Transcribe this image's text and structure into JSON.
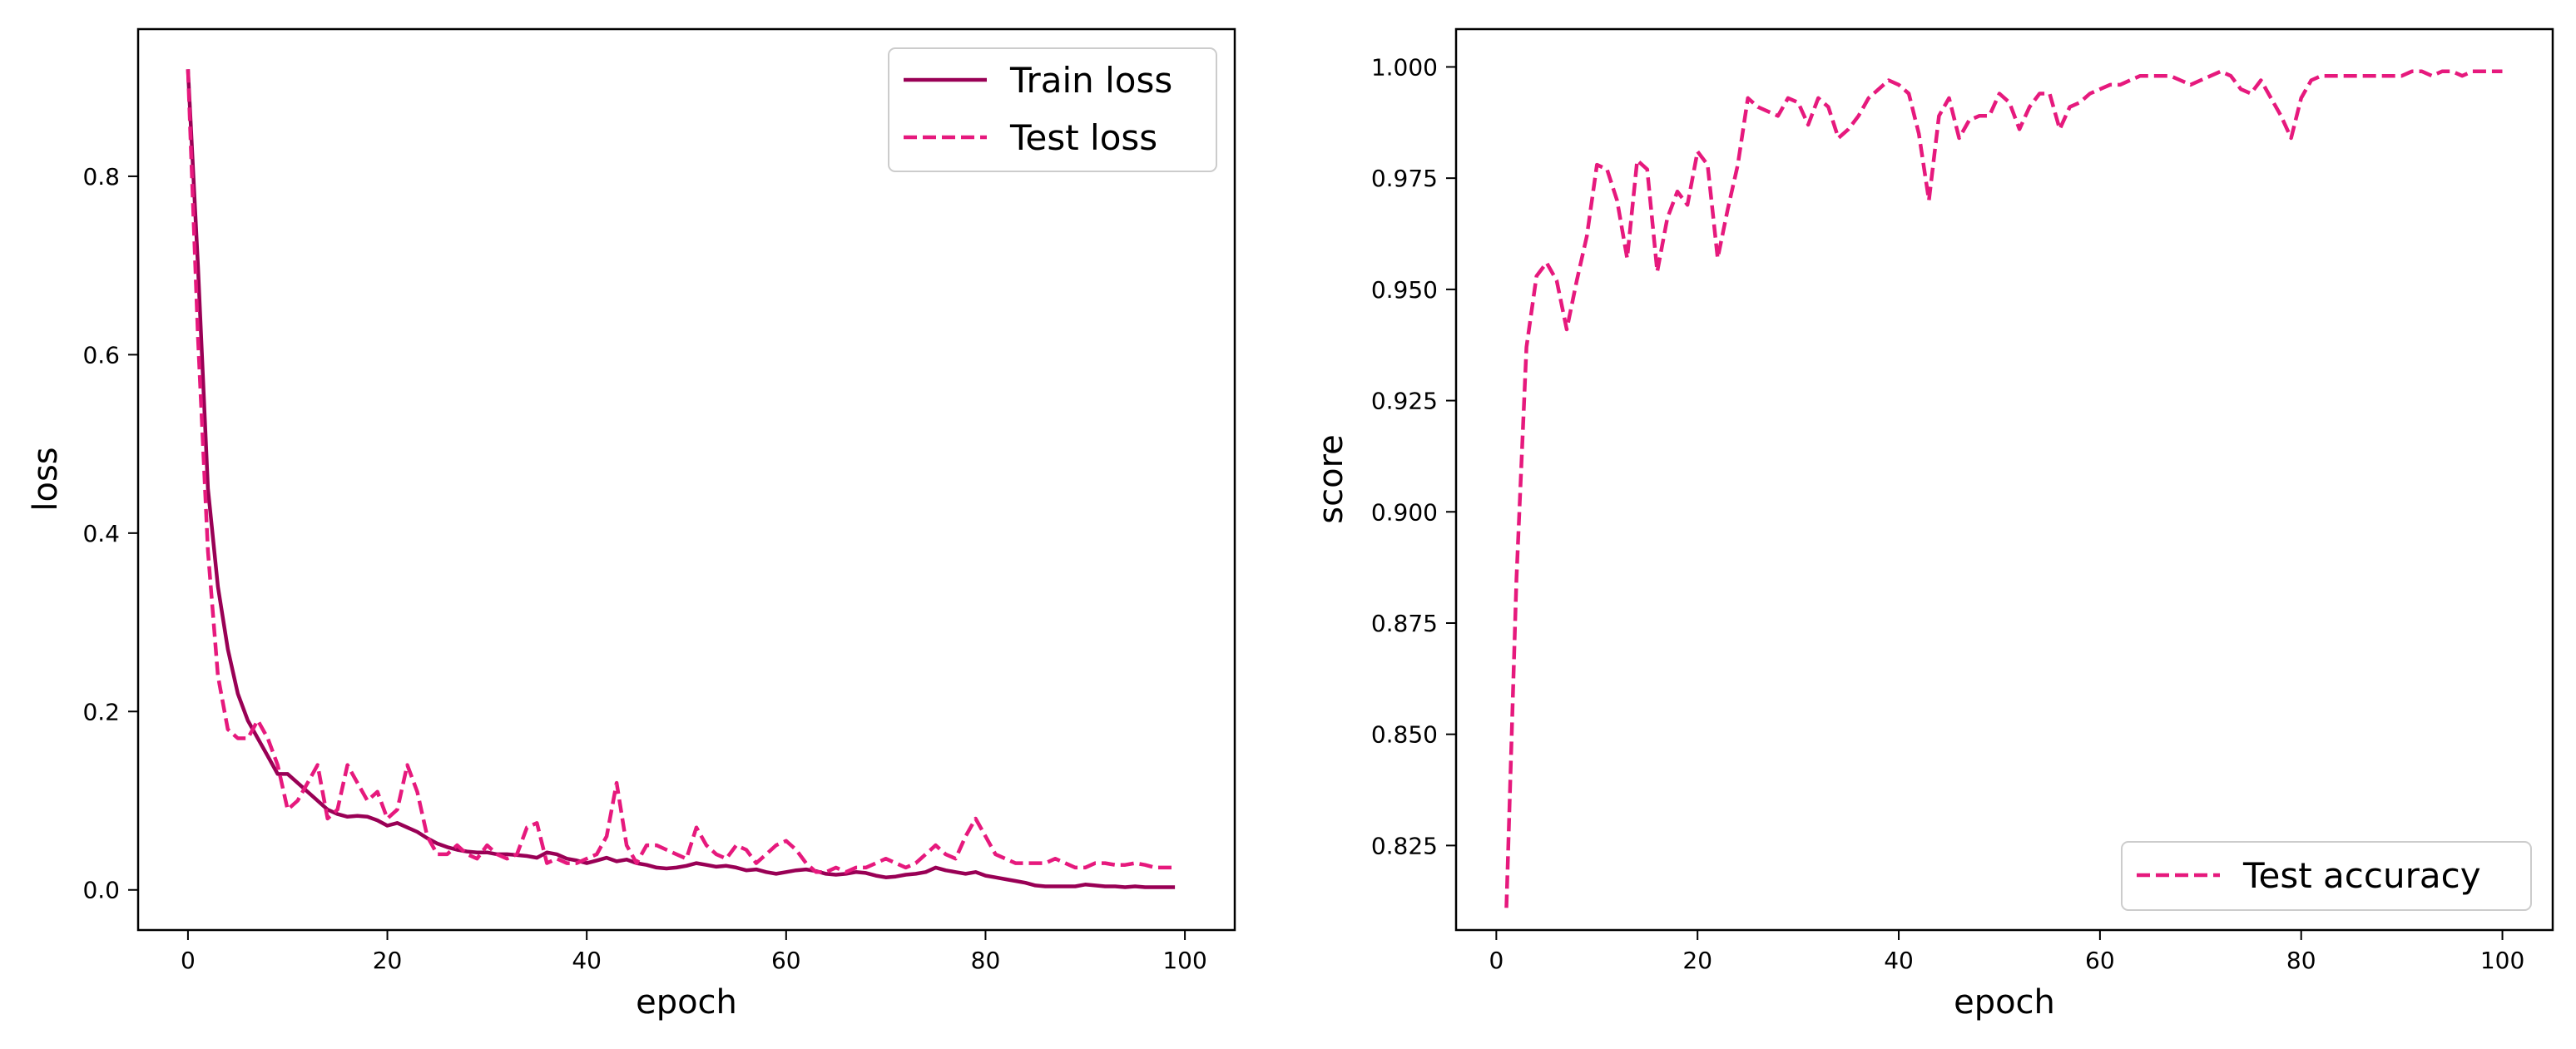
{
  "colors": {
    "train": "#990055",
    "test": "#e6197d",
    "axis": "#000000",
    "legend_border": "#cccccc"
  },
  "chart_data": [
    {
      "type": "line",
      "xlabel": "epoch",
      "ylabel": "loss",
      "xlim": [
        -5,
        105
      ],
      "ylim": [
        -0.045,
        0.965
      ],
      "xticks": [
        0,
        20,
        40,
        60,
        80,
        100
      ],
      "yticks": [
        0.0,
        0.2,
        0.4,
        0.6,
        0.8
      ],
      "xtick_labels": [
        "0",
        "20",
        "40",
        "60",
        "80",
        "100"
      ],
      "ytick_labels": [
        "0.0",
        "0.2",
        "0.4",
        "0.6",
        "0.8"
      ],
      "legend_position": "top-right",
      "series": [
        {
          "name": "Train loss",
          "style": "solid",
          "x": [
            0,
            1,
            2,
            3,
            4,
            5,
            6,
            7,
            8,
            9,
            10,
            11,
            12,
            13,
            14,
            15,
            16,
            17,
            18,
            19,
            20,
            21,
            22,
            23,
            24,
            25,
            26,
            27,
            28,
            29,
            30,
            31,
            32,
            33,
            34,
            35,
            36,
            37,
            38,
            39,
            40,
            41,
            42,
            43,
            44,
            45,
            46,
            47,
            48,
            49,
            50,
            51,
            52,
            53,
            54,
            55,
            56,
            57,
            58,
            59,
            60,
            61,
            62,
            63,
            64,
            65,
            66,
            67,
            68,
            69,
            70,
            71,
            72,
            73,
            74,
            75,
            76,
            77,
            78,
            79,
            80,
            81,
            82,
            83,
            84,
            85,
            86,
            87,
            88,
            89,
            90,
            91,
            92,
            93,
            94,
            95,
            96,
            97,
            98,
            99
          ],
          "y": [
            0.92,
            0.7,
            0.45,
            0.34,
            0.27,
            0.22,
            0.19,
            0.17,
            0.15,
            0.13,
            0.13,
            0.12,
            0.11,
            0.1,
            0.09,
            0.085,
            0.082,
            0.083,
            0.082,
            0.078,
            0.072,
            0.075,
            0.07,
            0.065,
            0.058,
            0.052,
            0.048,
            0.045,
            0.043,
            0.042,
            0.042,
            0.04,
            0.04,
            0.039,
            0.038,
            0.036,
            0.042,
            0.04,
            0.035,
            0.033,
            0.03,
            0.033,
            0.036,
            0.032,
            0.034,
            0.03,
            0.028,
            0.025,
            0.024,
            0.025,
            0.027,
            0.03,
            0.028,
            0.026,
            0.027,
            0.025,
            0.022,
            0.023,
            0.02,
            0.018,
            0.02,
            0.022,
            0.023,
            0.021,
            0.018,
            0.017,
            0.018,
            0.02,
            0.019,
            0.016,
            0.014,
            0.015,
            0.017,
            0.018,
            0.02,
            0.025,
            0.022,
            0.02,
            0.018,
            0.02,
            0.016,
            0.014,
            0.012,
            0.01,
            0.008,
            0.005,
            0.004,
            0.004,
            0.004,
            0.004,
            0.006,
            0.005,
            0.004,
            0.004,
            0.003,
            0.004,
            0.003,
            0.003,
            0.003,
            0.003
          ]
        },
        {
          "name": "Test loss",
          "style": "dashed",
          "x": [
            0,
            1,
            2,
            3,
            4,
            5,
            6,
            7,
            8,
            9,
            10,
            11,
            12,
            13,
            14,
            15,
            16,
            17,
            18,
            19,
            20,
            21,
            22,
            23,
            24,
            25,
            26,
            27,
            28,
            29,
            30,
            31,
            32,
            33,
            34,
            35,
            36,
            37,
            38,
            39,
            40,
            41,
            42,
            43,
            44,
            45,
            46,
            47,
            48,
            49,
            50,
            51,
            52,
            53,
            54,
            55,
            56,
            57,
            58,
            59,
            60,
            61,
            62,
            63,
            64,
            65,
            66,
            67,
            68,
            69,
            70,
            71,
            72,
            73,
            74,
            75,
            76,
            77,
            78,
            79,
            80,
            81,
            82,
            83,
            84,
            85,
            86,
            87,
            88,
            89,
            90,
            91,
            92,
            93,
            94,
            95,
            96,
            97,
            98,
            99
          ],
          "y": [
            0.92,
            0.62,
            0.38,
            0.24,
            0.18,
            0.17,
            0.17,
            0.19,
            0.17,
            0.14,
            0.09,
            0.1,
            0.12,
            0.14,
            0.08,
            0.09,
            0.14,
            0.12,
            0.1,
            0.11,
            0.08,
            0.09,
            0.14,
            0.11,
            0.06,
            0.04,
            0.04,
            0.05,
            0.04,
            0.035,
            0.05,
            0.04,
            0.035,
            0.04,
            0.07,
            0.075,
            0.03,
            0.035,
            0.03,
            0.03,
            0.035,
            0.04,
            0.06,
            0.12,
            0.05,
            0.03,
            0.05,
            0.05,
            0.045,
            0.04,
            0.035,
            0.07,
            0.05,
            0.04,
            0.035,
            0.05,
            0.045,
            0.03,
            0.04,
            0.05,
            0.055,
            0.045,
            0.03,
            0.02,
            0.02,
            0.025,
            0.02,
            0.025,
            0.025,
            0.03,
            0.035,
            0.03,
            0.025,
            0.03,
            0.04,
            0.05,
            0.04,
            0.035,
            0.06,
            0.08,
            0.06,
            0.04,
            0.035,
            0.03,
            0.03,
            0.03,
            0.03,
            0.035,
            0.03,
            0.025,
            0.025,
            0.03,
            0.03,
            0.028,
            0.028,
            0.03,
            0.028,
            0.025,
            0.025,
            0.025
          ]
        }
      ]
    },
    {
      "type": "line",
      "xlabel": "epoch",
      "ylabel": "score",
      "xlim": [
        -4,
        105
      ],
      "ylim": [
        0.806,
        1.0085
      ],
      "xticks": [
        0,
        20,
        40,
        60,
        80,
        100
      ],
      "yticks": [
        0.825,
        0.85,
        0.875,
        0.9,
        0.925,
        0.95,
        0.975,
        1.0
      ],
      "xtick_labels": [
        "0",
        "20",
        "40",
        "60",
        "80",
        "100"
      ],
      "ytick_labels": [
        "0.825",
        "0.850",
        "0.875",
        "0.900",
        "0.925",
        "0.950",
        "0.975",
        "1.000"
      ],
      "legend_position": "bottom-right",
      "series": [
        {
          "name": "Test accuracy",
          "style": "dashed",
          "x": [
            1,
            2,
            3,
            4,
            5,
            6,
            7,
            8,
            9,
            10,
            11,
            12,
            13,
            14,
            15,
            16,
            17,
            18,
            19,
            20,
            21,
            22,
            23,
            24,
            25,
            26,
            27,
            28,
            29,
            30,
            31,
            32,
            33,
            34,
            35,
            36,
            37,
            38,
            39,
            40,
            41,
            42,
            43,
            44,
            45,
            46,
            47,
            48,
            49,
            50,
            51,
            52,
            53,
            54,
            55,
            56,
            57,
            58,
            59,
            60,
            61,
            62,
            63,
            64,
            65,
            66,
            67,
            68,
            69,
            70,
            71,
            72,
            73,
            74,
            75,
            76,
            77,
            78,
            79,
            80,
            81,
            82,
            83,
            84,
            85,
            86,
            87,
            88,
            89,
            90,
            91,
            92,
            93,
            94,
            95,
            96,
            97,
            98,
            99,
            100
          ],
          "y": [
            0.811,
            0.885,
            0.937,
            0.953,
            0.956,
            0.952,
            0.941,
            0.952,
            0.962,
            0.978,
            0.977,
            0.97,
            0.957,
            0.979,
            0.977,
            0.954,
            0.966,
            0.972,
            0.969,
            0.981,
            0.978,
            0.957,
            0.968,
            0.978,
            0.993,
            0.991,
            0.99,
            0.989,
            0.993,
            0.992,
            0.987,
            0.993,
            0.991,
            0.984,
            0.986,
            0.989,
            0.993,
            0.995,
            0.997,
            0.996,
            0.994,
            0.985,
            0.97,
            0.989,
            0.993,
            0.984,
            0.988,
            0.989,
            0.989,
            0.994,
            0.992,
            0.986,
            0.991,
            0.994,
            0.994,
            0.986,
            0.991,
            0.992,
            0.994,
            0.995,
            0.996,
            0.996,
            0.997,
            0.998,
            0.998,
            0.998,
            0.998,
            0.997,
            0.996,
            0.997,
            0.998,
            0.999,
            0.998,
            0.995,
            0.994,
            0.997,
            0.993,
            0.989,
            0.984,
            0.993,
            0.997,
            0.998,
            0.998,
            0.998,
            0.998,
            0.998,
            0.998,
            0.998,
            0.998,
            0.998,
            0.999,
            0.999,
            0.998,
            0.999,
            0.999,
            0.998,
            0.999,
            0.999,
            0.999,
            0.999
          ]
        }
      ]
    }
  ]
}
